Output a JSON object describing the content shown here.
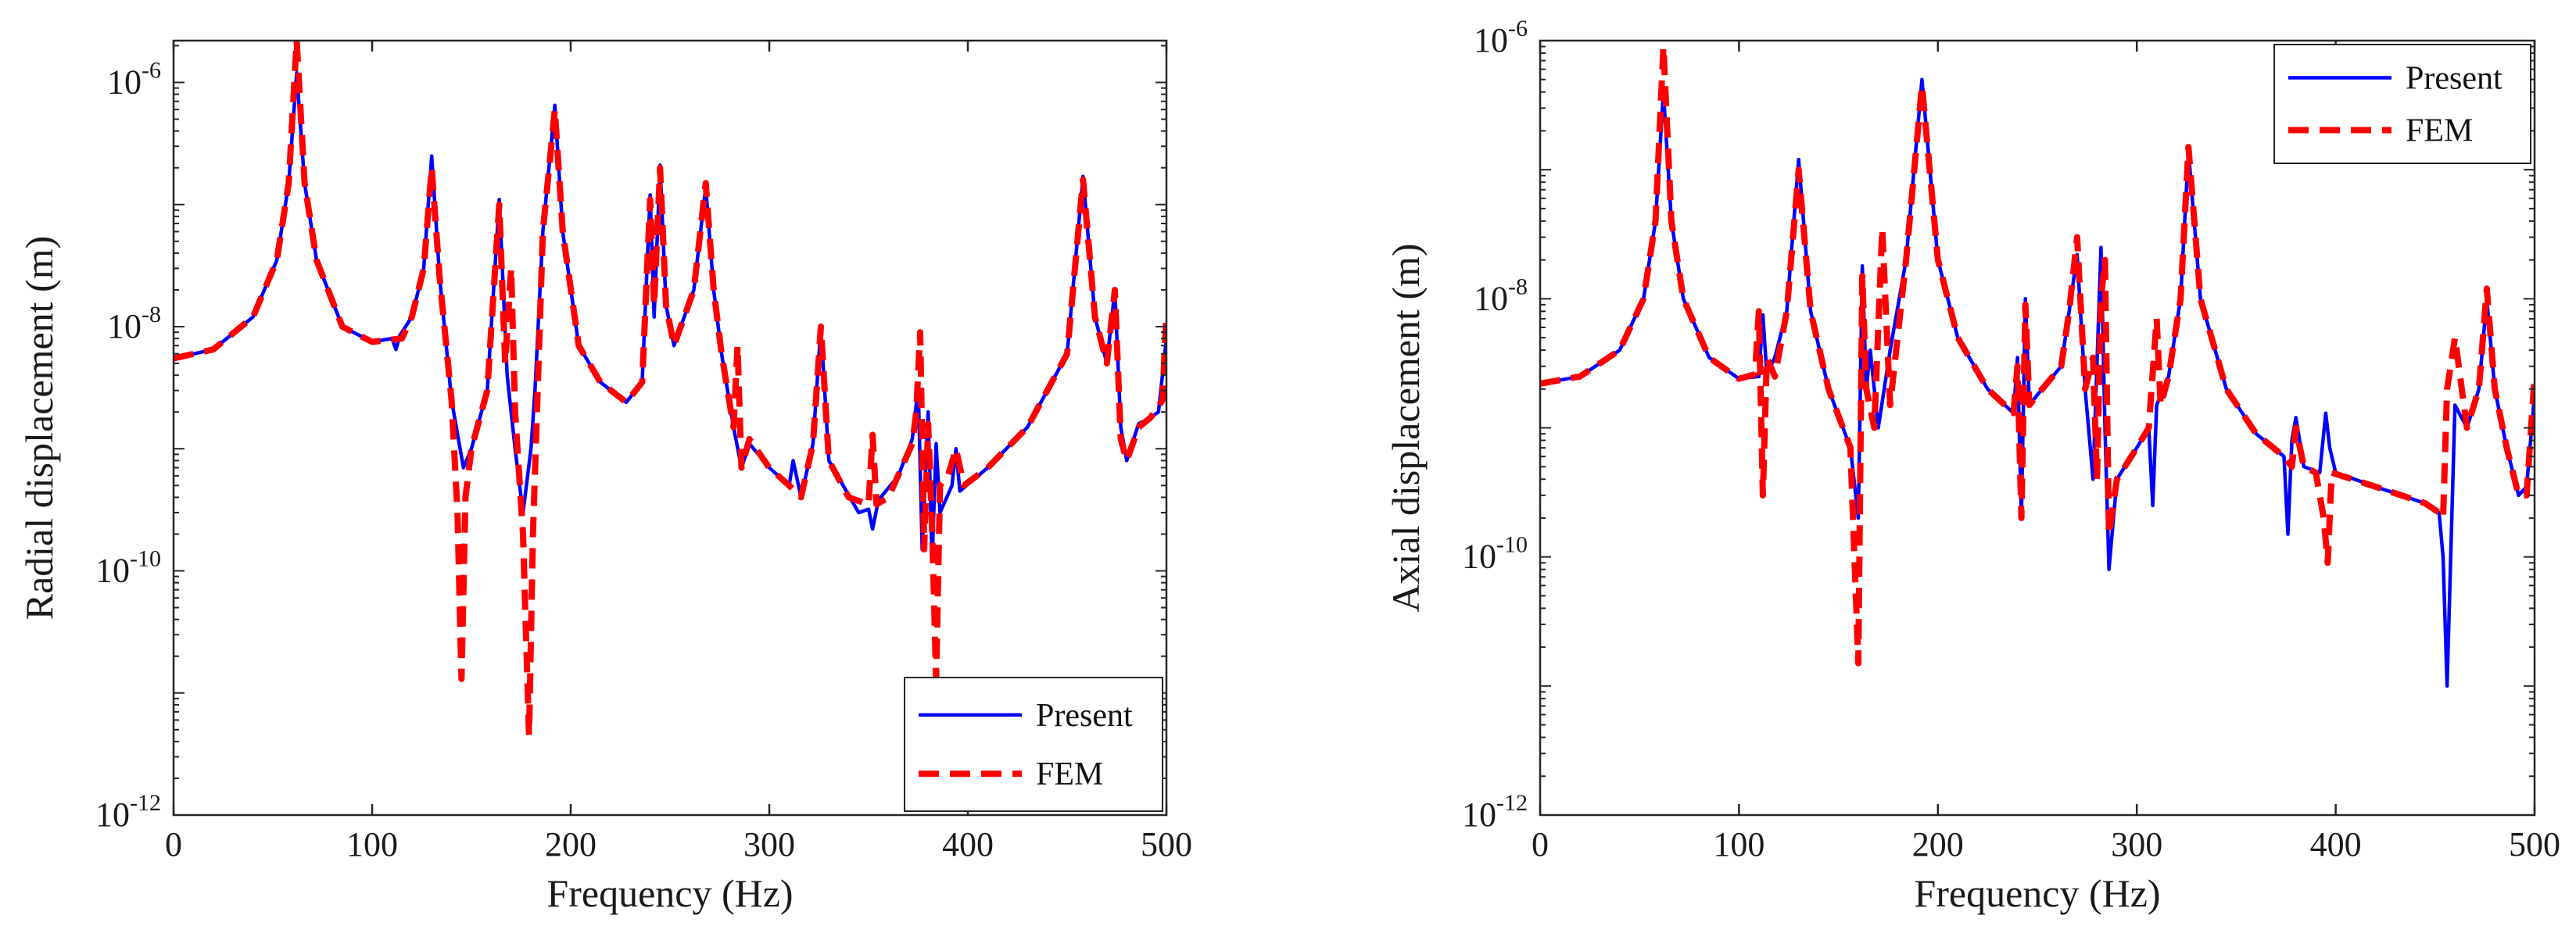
{
  "colors": {
    "present": "#0000ff",
    "fem": "#ff0000",
    "axes": "#262626"
  },
  "chart_data": [
    {
      "type": "line",
      "y_scale": "log",
      "xlabel": "Frequency (Hz)",
      "ylabel": "Radial displacement (m)",
      "xlim": [
        0,
        500
      ],
      "ylim": [
        1e-12,
        2.2e-06
      ],
      "xticks": [
        0,
        100,
        200,
        300,
        400,
        500
      ],
      "xtick_labels": [
        "0",
        "100",
        "200",
        "300",
        "400",
        "500"
      ],
      "yticks": [
        1e-12,
        1e-10,
        1e-08,
        1e-06
      ],
      "ytick_labels": [
        {
          "base": "10",
          "exp": "-12"
        },
        {
          "base": "10",
          "exp": "-10"
        },
        {
          "base": "10",
          "exp": "-8"
        },
        {
          "base": "10",
          "exp": "-6"
        }
      ],
      "legend": {
        "position": "bottom-right",
        "entries": [
          "Present",
          "FEM"
        ]
      },
      "series": [
        {
          "name": "Present",
          "style": "solid",
          "x": [
            0,
            20,
            40,
            52,
            58,
            62,
            66,
            72,
            85,
            100,
            110,
            112,
            114,
            120,
            126,
            130,
            134,
            140,
            146,
            150,
            158,
            164,
            168,
            172,
            176,
            180,
            182,
            186,
            192,
            196,
            204,
            215,
            228,
            236,
            240,
            242,
            245,
            248,
            252,
            262,
            268,
            272,
            276,
            282,
            286,
            290,
            300,
            310,
            312,
            316,
            322,
            326,
            330,
            345,
            350,
            352,
            355,
            365,
            372,
            375,
            377,
            380,
            382,
            384,
            386,
            392,
            394,
            396,
            410,
            430,
            450,
            458,
            464,
            470,
            474,
            477,
            480,
            486,
            492,
            496,
            500
          ],
          "y": [
            5.5e-09,
            6.5e-09,
            1.2e-08,
            3.5e-08,
            1.5e-07,
            1.2e-06,
            1.5e-07,
            3.5e-08,
            1e-08,
            7.5e-09,
            8e-09,
            6.5e-09,
            8.5e-09,
            1.2e-08,
            3e-08,
            2.5e-07,
            2.5e-08,
            2.5e-09,
            7e-10,
            1e-09,
            3e-09,
            1.1e-07,
            4e-09,
            1e-09,
            3e-10,
            1e-09,
            3e-09,
            6e-08,
            6.5e-07,
            6e-08,
            7e-09,
            3.5e-09,
            2.4e-09,
            3.5e-09,
            1.2e-07,
            1.2e-08,
            2.1e-07,
            1.5e-08,
            7e-09,
            2e-08,
            1.4e-07,
            2e-08,
            6e-09,
            1.5e-09,
            7e-10,
            1.1e-09,
            7e-10,
            5e-10,
            8e-10,
            4e-10,
            1.1e-09,
            1e-08,
            8e-10,
            3e-10,
            3.2e-10,
            2.2e-10,
            3.8e-10,
            6e-10,
            1.2e-09,
            3.2e-09,
            1.5e-10,
            2e-09,
            1.2e-10,
            1.1e-09,
            3e-10,
            5e-10,
            1e-09,
            4.5e-10,
            7e-10,
            1.5e-09,
            6e-09,
            1.7e-07,
            1.2e-08,
            5e-09,
            2e-08,
            1.5e-09,
            8e-10,
            1.6e-09,
            1.8e-09,
            2e-09,
            8e-09
          ]
        },
        {
          "name": "FEM",
          "style": "dashed",
          "x": [
            0,
            20,
            40,
            52,
            58,
            62,
            66,
            72,
            85,
            100,
            115,
            120,
            126,
            130,
            134,
            140,
            143,
            145,
            147,
            150,
            158,
            164,
            167,
            170,
            172,
            176,
            179,
            181,
            186,
            192,
            196,
            204,
            215,
            228,
            236,
            240,
            242,
            245,
            248,
            252,
            262,
            268,
            272,
            276,
            282,
            284,
            286,
            290,
            300,
            310,
            316,
            322,
            326,
            330,
            340,
            350,
            352,
            354,
            360,
            372,
            374,
            376,
            378,
            380,
            382,
            384,
            386,
            390,
            394,
            398,
            410,
            430,
            450,
            458,
            464,
            470,
            474,
            477,
            480,
            486,
            492,
            498,
            500
          ],
          "y": [
            5.5e-09,
            6.5e-09,
            1.2e-08,
            3.5e-08,
            1.5e-07,
            2.2e-06,
            1.5e-07,
            3.5e-08,
            1e-08,
            7.5e-09,
            8e-09,
            1.2e-08,
            3e-08,
            2e-07,
            2.5e-08,
            2.5e-09,
            3e-10,
            1.3e-11,
            4e-10,
            1e-09,
            3e-09,
            1e-07,
            5e-09,
            3e-08,
            2e-09,
            2e-10,
            4.5e-12,
            2e-10,
            6e-08,
            6e-07,
            6e-08,
            7e-09,
            3.5e-09,
            2.4e-09,
            3.5e-09,
            1.1e-07,
            1.5e-08,
            2e-07,
            1.5e-08,
            7e-09,
            2e-08,
            1.5e-07,
            2e-08,
            6e-09,
            1.5e-09,
            7e-09,
            7e-10,
            1.2e-09,
            7e-10,
            5e-10,
            4e-10,
            1.1e-09,
            1e-08,
            8e-10,
            4e-10,
            3.5e-10,
            1.3e-09,
            3.5e-10,
            4e-10,
            1.1e-09,
            2e-09,
            9e-09,
            1.5e-10,
            1.6e-09,
            2.2e-10,
            1.3e-11,
            5e-10,
            6e-10,
            1e-09,
            5e-10,
            7e-10,
            1.5e-09,
            6e-09,
            1.6e-07,
            1.2e-08,
            5e-09,
            2e-08,
            1.2e-09,
            8e-10,
            1.5e-09,
            1.8e-09,
            2.5e-09,
            1.3e-08
          ]
        }
      ]
    },
    {
      "type": "line",
      "y_scale": "log",
      "xlabel": "Frequency (Hz)",
      "ylabel": "Axial displacement (m)",
      "xlim": [
        0,
        500
      ],
      "ylim": [
        1e-12,
        1e-06
      ],
      "xticks": [
        0,
        100,
        200,
        300,
        400,
        500
      ],
      "xtick_labels": [
        "0",
        "100",
        "200",
        "300",
        "400",
        "500"
      ],
      "yticks": [
        1e-12,
        1e-10,
        1e-08,
        1e-06
      ],
      "ytick_labels": [
        {
          "base": "10",
          "exp": "-12"
        },
        {
          "base": "10",
          "exp": "-10"
        },
        {
          "base": "10",
          "exp": "-8"
        },
        {
          "base": "10",
          "exp": "-6"
        }
      ],
      "legend": {
        "position": "top-right",
        "entries": [
          "Present",
          "FEM"
        ]
      },
      "series": [
        {
          "name": "Present",
          "style": "solid",
          "x": [
            0,
            20,
            40,
            52,
            58,
            62,
            66,
            72,
            85,
            100,
            110,
            112,
            114,
            118,
            124,
            130,
            136,
            145,
            156,
            160,
            162,
            164,
            166,
            170,
            176,
            184,
            192,
            200,
            210,
            225,
            238,
            240,
            242,
            244,
            246,
            250,
            262,
            266,
            270,
            274,
            278,
            282,
            284,
            286,
            290,
            300,
            306,
            308,
            310,
            316,
            322,
            326,
            332,
            345,
            360,
            374,
            376,
            378,
            380,
            384,
            392,
            395,
            397,
            400,
            420,
            445,
            452,
            454,
            456,
            460,
            466,
            472,
            476,
            480,
            486,
            492,
            496,
            500
          ],
          "y": [
            2.2e-09,
            2.5e-09,
            4e-09,
            1e-08,
            4e-08,
            4e-07,
            4e-08,
            1e-08,
            3.5e-09,
            2.4e-09,
            2.5e-09,
            7.5e-09,
            2.6e-09,
            3.5e-09,
            8e-09,
            1.2e-07,
            8e-09,
            2e-09,
            7e-10,
            2e-10,
            1.8e-08,
            2e-09,
            4e-09,
            1e-09,
            4e-09,
            2e-08,
            5e-07,
            2e-08,
            5e-09,
            2e-09,
            1.3e-09,
            3.5e-09,
            2e-10,
            1e-08,
            1.5e-09,
            1.8e-09,
            3e-09,
            8e-09,
            2.2e-08,
            2e-09,
            4e-10,
            2.5e-08,
            1e-09,
            8e-11,
            4e-10,
            7e-10,
            1e-09,
            2.5e-10,
            1.5e-09,
            2.5e-09,
            1e-08,
            1.4e-07,
            1e-08,
            2e-09,
            9e-10,
            6e-10,
            1.5e-10,
            8e-10,
            1.2e-09,
            5e-10,
            4.5e-10,
            1.3e-09,
            7e-10,
            4.5e-10,
            3.5e-10,
            2.6e-10,
            2.2e-10,
            1e-10,
            1e-11,
            1.5e-09,
            1e-09,
            2e-09,
            1e-08,
            2e-09,
            7e-10,
            3e-10,
            3.5e-10,
            1.8e-09
          ]
        },
        {
          "name": "FEM",
          "style": "dashed",
          "x": [
            0,
            20,
            40,
            52,
            58,
            62,
            66,
            72,
            85,
            100,
            108,
            110,
            112,
            114,
            118,
            124,
            130,
            136,
            145,
            156,
            160,
            162,
            164,
            168,
            172,
            176,
            184,
            192,
            200,
            210,
            225,
            238,
            240,
            242,
            244,
            246,
            250,
            262,
            266,
            270,
            274,
            278,
            280,
            282,
            284,
            286,
            290,
            300,
            306,
            310,
            312,
            316,
            322,
            326,
            332,
            345,
            360,
            374,
            378,
            380,
            384,
            390,
            394,
            396,
            398,
            420,
            445,
            452,
            454,
            456,
            460,
            466,
            472,
            476,
            480,
            486,
            492,
            496,
            500
          ],
          "y": [
            2.2e-09,
            2.5e-09,
            4e-09,
            1e-08,
            4e-08,
            9e-07,
            4e-08,
            1e-08,
            3.5e-09,
            2.4e-09,
            2.6e-09,
            8e-09,
            3e-10,
            3.5e-09,
            2.5e-09,
            8e-09,
            1e-07,
            8e-09,
            2e-09,
            7e-10,
            1.5e-11,
            1.5e-08,
            2e-09,
            1e-09,
            3.5e-08,
            1.5e-09,
            2e-08,
            4.5e-07,
            2e-08,
            5e-09,
            2e-09,
            1.3e-09,
            3e-09,
            2e-10,
            9e-09,
            1.5e-09,
            1.8e-09,
            3e-09,
            8e-09,
            3e-08,
            2e-09,
            3.5e-09,
            4e-10,
            1e-08,
            2e-08,
            1.5e-10,
            4e-10,
            7e-10,
            1e-09,
            7e-09,
            1.5e-09,
            2.5e-09,
            1e-08,
            1.5e-07,
            1e-08,
            2e-09,
            9e-10,
            6e-10,
            5e-10,
            1e-09,
            5e-10,
            4.5e-10,
            2e-10,
            9e-11,
            4.5e-10,
            3.5e-10,
            2.6e-10,
            2.2e-10,
            2e-10,
            2e-09,
            5e-09,
            1e-09,
            2e-09,
            1.2e-08,
            2e-09,
            7e-10,
            3e-10,
            3e-10,
            2.5e-09
          ]
        }
      ]
    }
  ]
}
